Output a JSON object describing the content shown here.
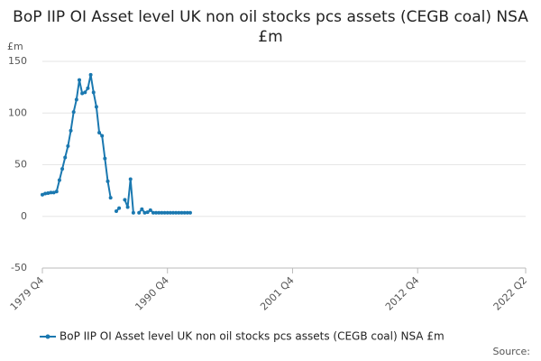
{
  "chart_data": {
    "type": "line",
    "title": "BoP IIP OI Asset level UK non oil stocks pcs assets (CEGB coal) NSA £m",
    "y_label": "£m",
    "source": "Source:",
    "categories": [
      "1979 Q4",
      null,
      null,
      null,
      null,
      null,
      null,
      null,
      null,
      null,
      null,
      null,
      null,
      null,
      null,
      null,
      null,
      null,
      null,
      null,
      null,
      null,
      null,
      null,
      null,
      null,
      null,
      null,
      null,
      null,
      null,
      null,
      null,
      null,
      null,
      null,
      null,
      null,
      null,
      null,
      null,
      null,
      null,
      null,
      "1990 Q4",
      null,
      null,
      null,
      null,
      null,
      null,
      null,
      null,
      null,
      null,
      null,
      null,
      null,
      null,
      null,
      null,
      null,
      null,
      null,
      null,
      null,
      null,
      null,
      null,
      null,
      null,
      null,
      null,
      null,
      null,
      null,
      null,
      null,
      null,
      null,
      null,
      null,
      null,
      null,
      null,
      null,
      null,
      null,
      "2001 Q4",
      null,
      null,
      null,
      null,
      null,
      null,
      null,
      null,
      null,
      null,
      null,
      null,
      null,
      null,
      null,
      null,
      null,
      null,
      null,
      null,
      null,
      null,
      null,
      null,
      null,
      null,
      null,
      null,
      null,
      null,
      null,
      null,
      null,
      null,
      null,
      null,
      null,
      null,
      null,
      null,
      null,
      null,
      null,
      "2012 Q4",
      null,
      null,
      null,
      null,
      null,
      null,
      null,
      null,
      null,
      null,
      null,
      null,
      null,
      null,
      null,
      null,
      null,
      null,
      null,
      null,
      null,
      null,
      null,
      null,
      null,
      null,
      null,
      null,
      null,
      null,
      null,
      null,
      null,
      null,
      null,
      null,
      null,
      "2022 Q2"
    ],
    "series": [
      {
        "name": "BoP IIP OI Asset level UK non oil stocks pcs assets (CEGB coal) NSA £m",
        "color": "#1a78b0",
        "values": [
          21,
          22,
          22.5,
          23,
          23,
          24,
          35,
          46,
          57,
          68,
          83,
          101,
          113,
          132,
          119,
          120,
          124,
          137,
          120,
          106,
          81,
          78,
          56,
          34,
          18,
          null,
          5,
          8,
          null,
          16,
          9,
          36,
          3.5,
          null,
          3.5,
          7,
          3.5,
          4,
          6,
          3.5,
          3.5,
          3.5,
          3.5,
          3.5,
          3.5,
          3.5,
          3.5,
          3.5,
          3.5,
          3.5,
          3.5,
          3.5,
          3.5,
          null,
          null,
          null,
          null,
          null,
          null,
          null,
          null,
          null,
          null,
          null,
          null,
          null,
          null,
          null,
          null,
          null,
          null,
          null,
          null,
          null,
          null,
          null,
          null,
          null,
          null,
          null,
          null,
          null,
          null,
          null,
          null,
          null,
          null,
          null,
          null,
          null,
          null,
          null,
          null,
          null,
          null,
          null,
          null,
          null,
          null,
          null,
          null,
          null,
          null,
          null,
          null,
          null,
          null,
          null,
          null,
          null,
          null,
          null,
          null,
          null,
          null,
          null,
          null,
          null,
          null,
          null,
          null,
          null,
          null,
          null,
          null,
          null,
          null,
          null,
          null,
          null,
          null,
          null,
          null,
          null,
          null,
          null,
          null,
          null,
          null,
          null,
          null,
          null,
          null,
          null,
          null,
          null,
          null,
          null,
          null,
          null,
          null,
          null,
          null,
          null,
          null,
          null,
          null,
          null,
          null,
          null,
          null,
          null,
          null,
          null,
          null,
          null,
          null,
          null,
          null,
          null,
          null
        ]
      }
    ],
    "ylim": [
      -50,
      150
    ],
    "yticks": [
      -50,
      0,
      50,
      100,
      150
    ],
    "grid": true,
    "legend": "bottom"
  }
}
